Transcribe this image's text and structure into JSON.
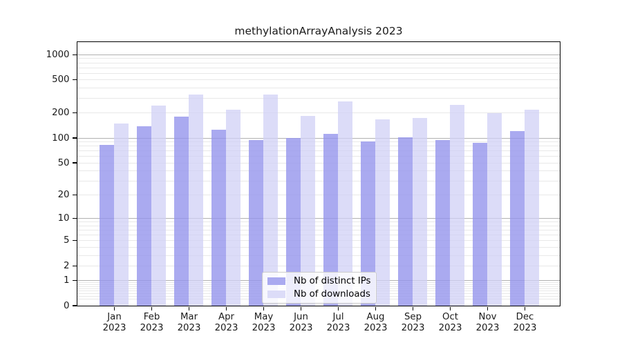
{
  "chart_data": {
    "type": "bar",
    "title": "methylationArrayAnalysis 2023",
    "categories": [
      "Jan 2023",
      "Feb 2023",
      "Mar 2023",
      "Apr 2023",
      "May 2023",
      "Jun 2023",
      "Jul 2023",
      "Aug 2023",
      "Sep 2023",
      "Oct 2023",
      "Nov 2023",
      "Dec 2023"
    ],
    "series": [
      {
        "name": "Nb of distinct IPs",
        "color": "#aaaaf0",
        "alpha": 0.8,
        "values": [
          82,
          137,
          180,
          124,
          94,
          100,
          112,
          90,
          102,
          94,
          87,
          121
        ]
      },
      {
        "name": "Nb of downloads",
        "color": "#dcdcf8",
        "alpha": 0.75,
        "values": [
          148,
          246,
          330,
          218,
          329,
          183,
          275,
          165,
          172,
          250,
          196,
          216
        ]
      }
    ],
    "xlabel": "",
    "ylabel": "",
    "yscale": "log1p",
    "ylim": [
      0,
      1416
    ],
    "yticks": [
      1000,
      500,
      200,
      100,
      50,
      20,
      10,
      5,
      2,
      1,
      0
    ],
    "major_gridlines": [
      1,
      10,
      100,
      1000
    ],
    "minor_gridline_mantissas": [
      2,
      3,
      4,
      5,
      6,
      7,
      8,
      9
    ],
    "minor_gridline_decades": [
      0.1,
      1,
      10,
      100
    ],
    "grid": true,
    "legend_position": "lower center",
    "colors": {
      "axis": "#000000",
      "major_grid": "#b0b0b0",
      "minor_grid": "#e8e8e8",
      "text": "#1a1a1a"
    }
  }
}
